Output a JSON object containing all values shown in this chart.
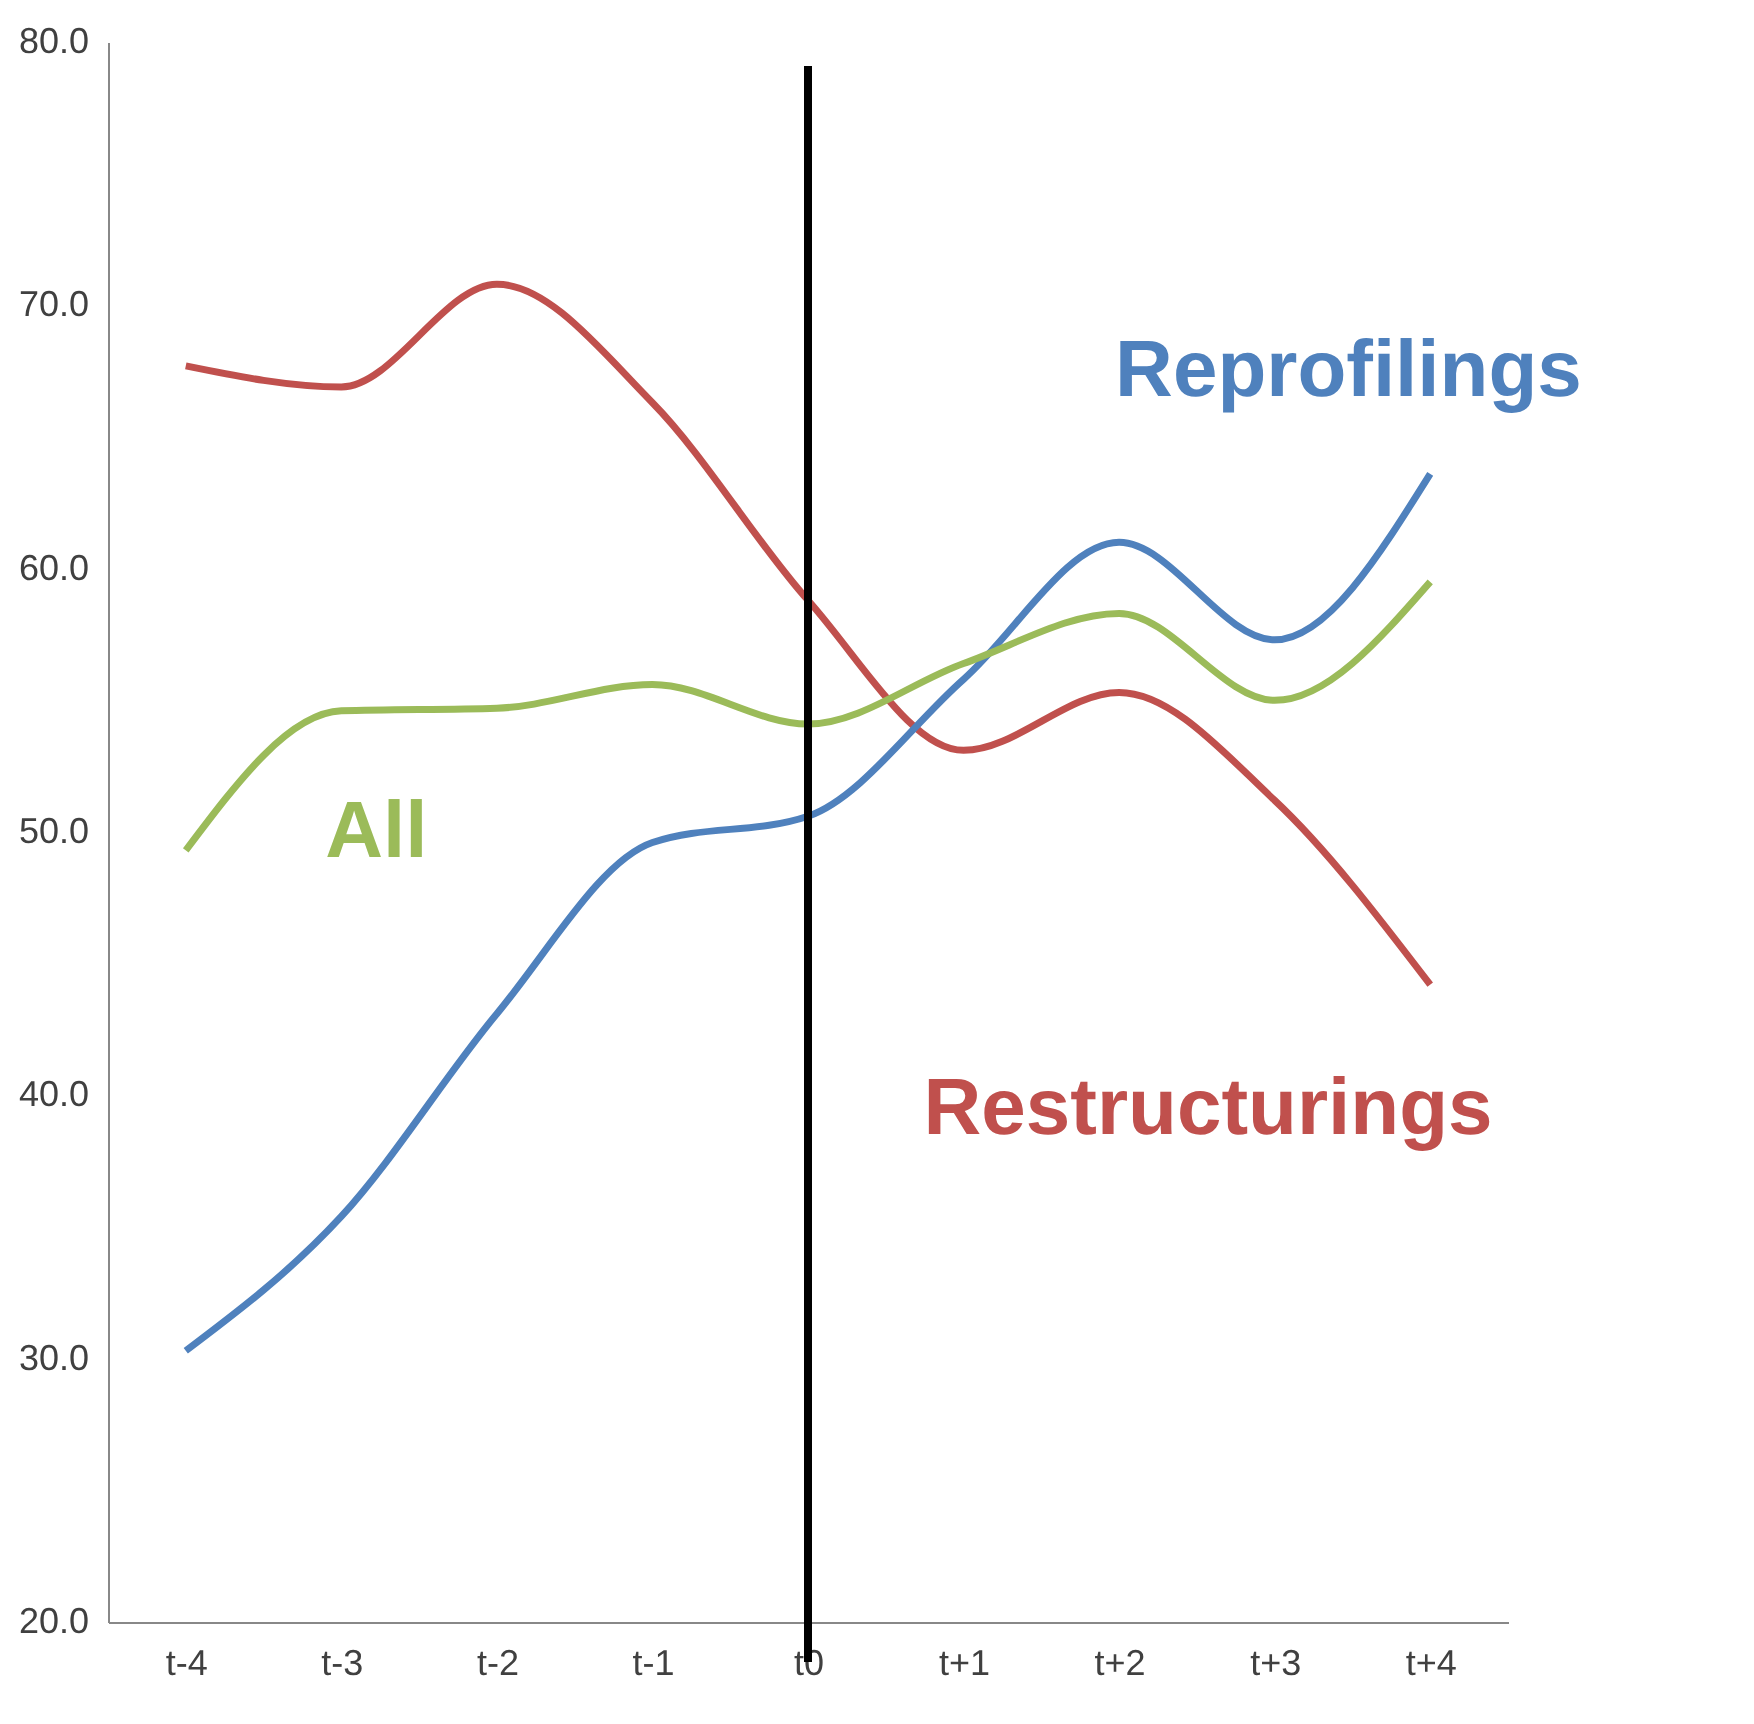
{
  "chart_data": {
    "type": "line",
    "categories": [
      "t-4",
      "t-3",
      "t-2",
      "t-1",
      "t0",
      "t+1",
      "t+2",
      "t+3",
      "t+4"
    ],
    "series": [
      {
        "name": "Restructurings",
        "color": "#c0504d",
        "values": [
          67.7,
          66.9,
          70.8,
          66.3,
          58.8,
          53.1,
          55.3,
          51.2,
          44.2
        ]
      },
      {
        "name": "Reprofilings",
        "color": "#4f81bd",
        "values": [
          30.3,
          35.4,
          43.1,
          49.6,
          50.6,
          55.8,
          61.0,
          57.3,
          63.6
        ]
      },
      {
        "name": "All",
        "color": "#9bbb59",
        "values": [
          49.3,
          54.6,
          54.7,
          55.6,
          54.1,
          56.4,
          58.3,
          55.0,
          59.5
        ]
      }
    ],
    "ylim": [
      20,
      80
    ],
    "yticks": [
      {
        "value": 20,
        "label": "20.0"
      },
      {
        "value": 30,
        "label": "30.0"
      },
      {
        "value": 40,
        "label": "40.0"
      },
      {
        "value": 50,
        "label": "50.0"
      },
      {
        "value": 60,
        "label": "60.0"
      },
      {
        "value": 70,
        "label": "70.0"
      },
      {
        "value": 80,
        "label": "80.0"
      }
    ],
    "ref_lines": [
      {
        "axis": "x",
        "value": "t0",
        "color": "#000000"
      }
    ],
    "grid": false,
    "legend": false,
    "marker": "none",
    "line_style": "solid"
  }
}
